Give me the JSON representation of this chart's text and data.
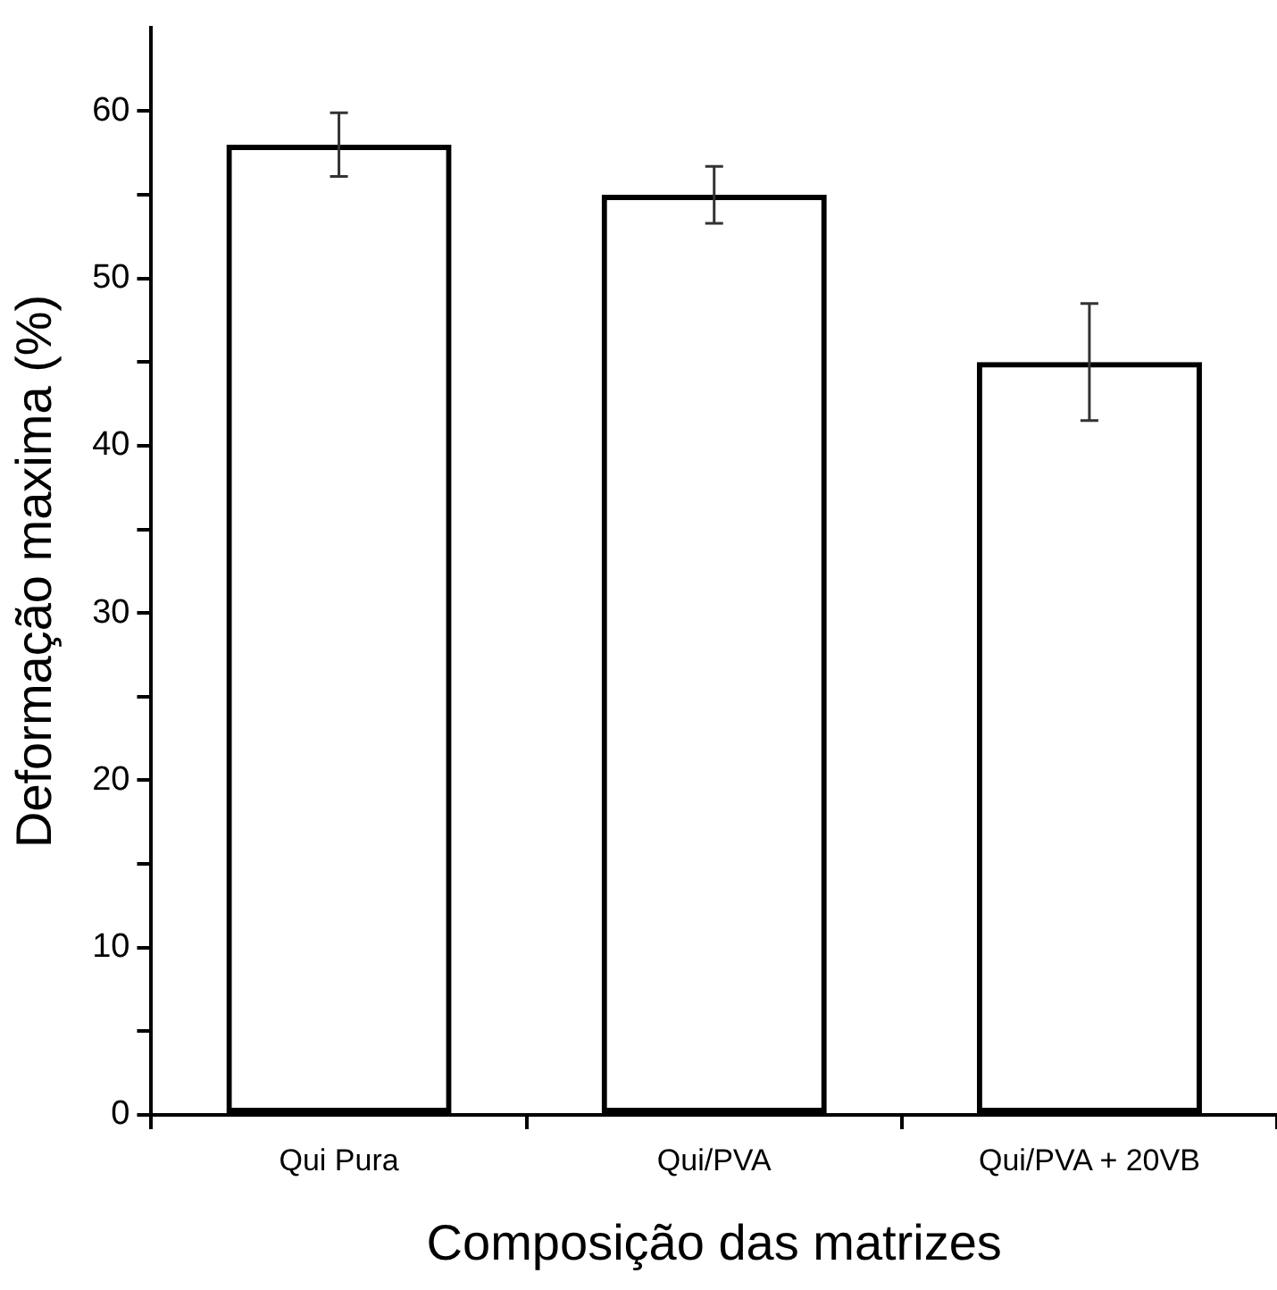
{
  "chart_data": {
    "type": "bar",
    "xlabel": "Composição das matrizes",
    "ylabel": "Deformação maxima (%)",
    "categories": [
      "Qui Pura",
      "Qui/PVA",
      "Qui/PVA + 20VB"
    ],
    "values": [
      58,
      55,
      45
    ],
    "errors": [
      1.9,
      1.7,
      3.5
    ],
    "color": "#000000",
    "ylim": [
      0,
      65
    ],
    "yticks": [
      0,
      {
        "value": 5,
        "label": null
      },
      10,
      {
        "value": 15,
        "label": null
      },
      20,
      {
        "value": 25,
        "label": null
      },
      30,
      {
        "value": 35,
        "label": null
      },
      40,
      {
        "value": 45,
        "label": null
      },
      50,
      {
        "value": 55,
        "label": null
      },
      60
    ],
    "grid": false,
    "legend": false
  }
}
